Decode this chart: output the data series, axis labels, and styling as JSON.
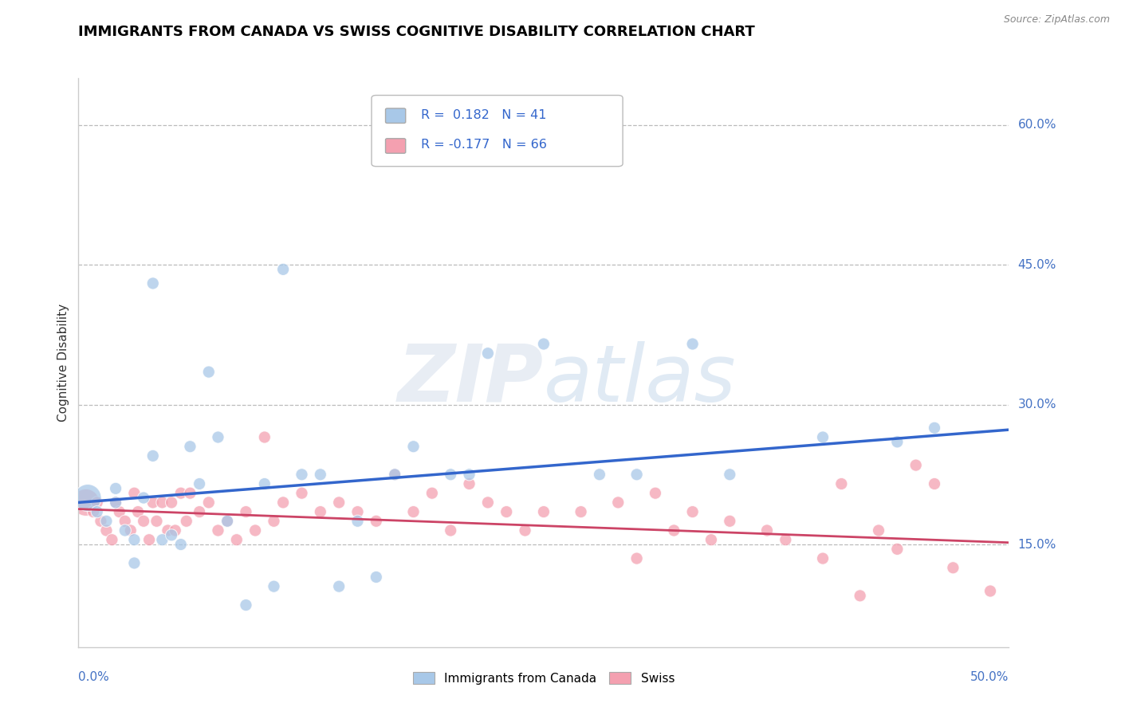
{
  "title": "IMMIGRANTS FROM CANADA VS SWISS COGNITIVE DISABILITY CORRELATION CHART",
  "source": "Source: ZipAtlas.com",
  "ylabel": "Cognitive Disability",
  "right_yticks": [
    "60.0%",
    "45.0%",
    "30.0%",
    "15.0%"
  ],
  "right_ytick_vals": [
    0.6,
    0.45,
    0.3,
    0.15
  ],
  "xlim": [
    0.0,
    0.5
  ],
  "ylim": [
    0.04,
    0.65
  ],
  "legend_r_canada": "0.182",
  "legend_n_canada": "41",
  "legend_r_swiss": "-0.177",
  "legend_n_swiss": "66",
  "canada_color": "#a8c8e8",
  "swiss_color": "#f4a0b0",
  "canada_line_color": "#3366cc",
  "swiss_line_color": "#cc4466",
  "canada_x": [
    0.005,
    0.01,
    0.015,
    0.02,
    0.02,
    0.025,
    0.03,
    0.03,
    0.035,
    0.04,
    0.04,
    0.045,
    0.05,
    0.055,
    0.06,
    0.065,
    0.07,
    0.075,
    0.08,
    0.09,
    0.1,
    0.105,
    0.11,
    0.12,
    0.13,
    0.14,
    0.15,
    0.16,
    0.17,
    0.18,
    0.2,
    0.21,
    0.22,
    0.25,
    0.28,
    0.3,
    0.33,
    0.35,
    0.4,
    0.44,
    0.46
  ],
  "canada_y": [
    0.2,
    0.185,
    0.175,
    0.21,
    0.195,
    0.165,
    0.155,
    0.13,
    0.2,
    0.43,
    0.245,
    0.155,
    0.16,
    0.15,
    0.255,
    0.215,
    0.335,
    0.265,
    0.175,
    0.085,
    0.215,
    0.105,
    0.445,
    0.225,
    0.225,
    0.105,
    0.175,
    0.115,
    0.225,
    0.255,
    0.225,
    0.225,
    0.355,
    0.365,
    0.225,
    0.225,
    0.365,
    0.225,
    0.265,
    0.26,
    0.275
  ],
  "canada_size": [
    600,
    120,
    120,
    120,
    120,
    120,
    120,
    120,
    120,
    120,
    120,
    120,
    120,
    120,
    120,
    120,
    120,
    120,
    120,
    120,
    120,
    120,
    120,
    120,
    120,
    120,
    120,
    120,
    120,
    120,
    120,
    120,
    120,
    120,
    120,
    120,
    120,
    120,
    120,
    120,
    120
  ],
  "swiss_x": [
    0.004,
    0.008,
    0.01,
    0.012,
    0.015,
    0.018,
    0.02,
    0.022,
    0.025,
    0.028,
    0.03,
    0.032,
    0.035,
    0.038,
    0.04,
    0.042,
    0.045,
    0.048,
    0.05,
    0.052,
    0.055,
    0.058,
    0.06,
    0.065,
    0.07,
    0.075,
    0.08,
    0.085,
    0.09,
    0.095,
    0.1,
    0.105,
    0.11,
    0.12,
    0.13,
    0.14,
    0.15,
    0.16,
    0.17,
    0.18,
    0.19,
    0.2,
    0.21,
    0.22,
    0.23,
    0.24,
    0.25,
    0.27,
    0.29,
    0.3,
    0.31,
    0.32,
    0.33,
    0.34,
    0.35,
    0.37,
    0.38,
    0.4,
    0.41,
    0.42,
    0.43,
    0.44,
    0.45,
    0.46,
    0.47,
    0.49
  ],
  "swiss_y": [
    0.195,
    0.185,
    0.195,
    0.175,
    0.165,
    0.155,
    0.195,
    0.185,
    0.175,
    0.165,
    0.205,
    0.185,
    0.175,
    0.155,
    0.195,
    0.175,
    0.195,
    0.165,
    0.195,
    0.165,
    0.205,
    0.175,
    0.205,
    0.185,
    0.195,
    0.165,
    0.175,
    0.155,
    0.185,
    0.165,
    0.265,
    0.175,
    0.195,
    0.205,
    0.185,
    0.195,
    0.185,
    0.175,
    0.225,
    0.185,
    0.205,
    0.165,
    0.215,
    0.195,
    0.185,
    0.165,
    0.185,
    0.185,
    0.195,
    0.135,
    0.205,
    0.165,
    0.185,
    0.155,
    0.175,
    0.165,
    0.155,
    0.135,
    0.215,
    0.095,
    0.165,
    0.145,
    0.235,
    0.215,
    0.125,
    0.1
  ],
  "swiss_size": [
    600,
    120,
    120,
    120,
    120,
    120,
    120,
    120,
    120,
    120,
    120,
    120,
    120,
    120,
    120,
    120,
    120,
    120,
    120,
    120,
    120,
    120,
    120,
    120,
    120,
    120,
    120,
    120,
    120,
    120,
    120,
    120,
    120,
    120,
    120,
    120,
    120,
    120,
    120,
    120,
    120,
    120,
    120,
    120,
    120,
    120,
    120,
    120,
    120,
    120,
    120,
    120,
    120,
    120,
    120,
    120,
    120,
    120,
    120,
    120,
    120,
    120,
    120,
    120,
    120,
    120
  ],
  "canada_line_x0": 0.0,
  "canada_line_x1": 0.5,
  "canada_line_y0": 0.195,
  "canada_line_y1": 0.273,
  "swiss_line_x0": 0.0,
  "swiss_line_x1": 0.5,
  "swiss_line_y0": 0.188,
  "swiss_line_y1": 0.152
}
